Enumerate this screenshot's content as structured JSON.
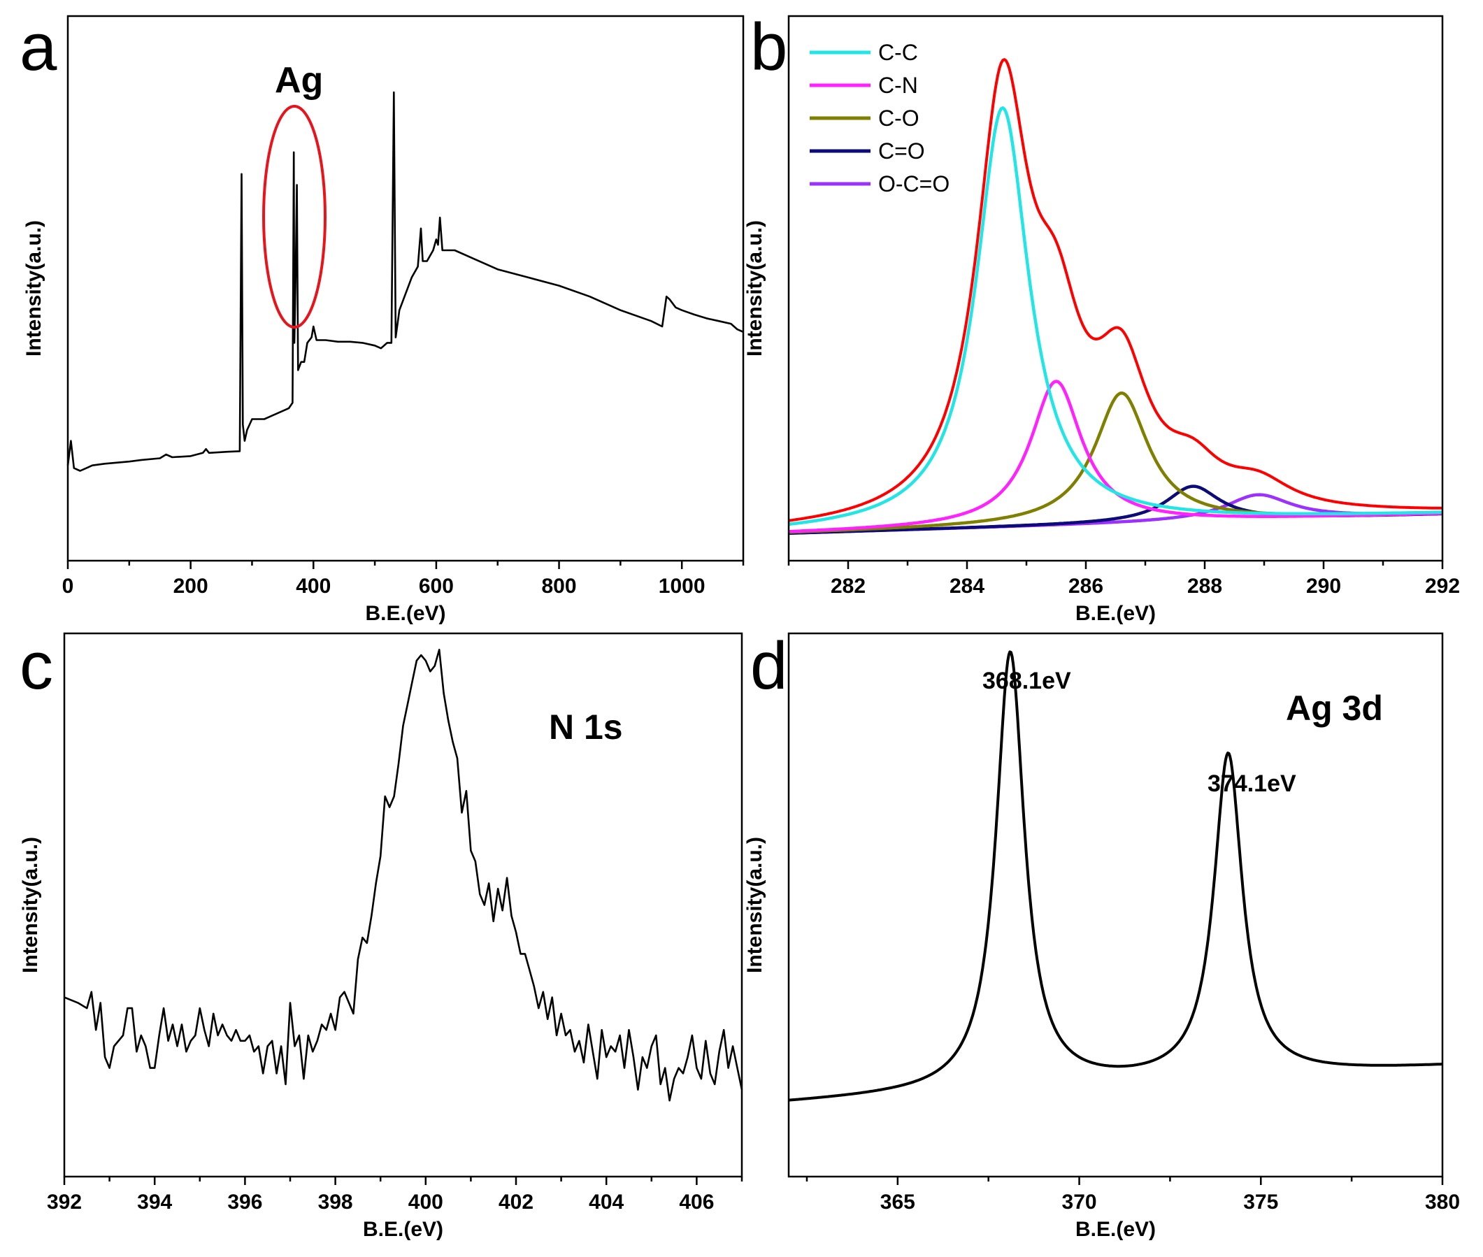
{
  "figure": {
    "panel_letters": [
      "a",
      "b",
      "c",
      "d"
    ]
  },
  "chart_data": [
    {
      "id": "a",
      "type": "line",
      "title": "",
      "xlabel": "B.E.(eV)",
      "ylabel": "Intensity(a.u.)",
      "xlim": [
        0,
        1100
      ],
      "ylim": [
        0,
        100
      ],
      "xticks": [
        0,
        200,
        400,
        600,
        800,
        1000
      ],
      "annotations": [
        {
          "text": "Ag"
        }
      ],
      "series": [
        {
          "name": "survey",
          "color": "#000000",
          "points": [
            [
              0,
              17.5
            ],
            [
              5,
              22
            ],
            [
              10,
              17
            ],
            [
              20,
              16.5
            ],
            [
              40,
              17.5
            ],
            [
              60,
              17.8
            ],
            [
              100,
              18.2
            ],
            [
              120,
              18.5
            ],
            [
              150,
              18.8
            ],
            [
              160,
              19.5
            ],
            [
              170,
              19
            ],
            [
              200,
              19.2
            ],
            [
              220,
              19.8
            ],
            [
              225,
              20.5
            ],
            [
              230,
              19.8
            ],
            [
              260,
              20
            ],
            [
              280,
              20.1
            ],
            [
              283,
              71
            ],
            [
              285,
              25
            ],
            [
              288,
              22
            ],
            [
              292,
              24
            ],
            [
              300,
              26
            ],
            [
              320,
              26
            ],
            [
              330,
              26.5
            ],
            [
              340,
              27
            ],
            [
              360,
              28
            ],
            [
              366,
              29
            ],
            [
              368,
              75
            ],
            [
              369,
              40
            ],
            [
              371,
              52
            ],
            [
              373,
              69
            ],
            [
              375,
              35
            ],
            [
              380,
              36.5
            ],
            [
              385,
              36.5
            ],
            [
              390,
              40
            ],
            [
              397,
              41
            ],
            [
              400,
              43
            ],
            [
              405,
              40.5
            ],
            [
              420,
              40.5
            ],
            [
              440,
              40.2
            ],
            [
              460,
              40.2
            ],
            [
              480,
              40
            ],
            [
              500,
              39.5
            ],
            [
              510,
              39
            ],
            [
              520,
              40
            ],
            [
              527,
              40
            ],
            [
              531,
              86
            ],
            [
              534,
              41
            ],
            [
              540,
              46
            ],
            [
              560,
              52
            ],
            [
              570,
              54
            ],
            [
              575,
              61
            ],
            [
              578,
              55
            ],
            [
              585,
              55
            ],
            [
              595,
              57
            ],
            [
              600,
              59
            ],
            [
              603,
              58
            ],
            [
              606,
              63
            ],
            [
              610,
              57
            ],
            [
              630,
              57
            ],
            [
              660,
              55.5
            ],
            [
              700,
              53.5
            ],
            [
              750,
              52
            ],
            [
              800,
              50.5
            ],
            [
              850,
              48.5
            ],
            [
              900,
              46
            ],
            [
              950,
              44
            ],
            [
              968,
              43
            ],
            [
              975,
              48.5
            ],
            [
              980,
              48
            ],
            [
              990,
              46.5
            ],
            [
              1000,
              46
            ],
            [
              1020,
              45.2
            ],
            [
              1040,
              44.5
            ],
            [
              1060,
              44
            ],
            [
              1080,
              43.5
            ],
            [
              1090,
              42.5
            ],
            [
              1100,
              42
            ]
          ]
        }
      ]
    },
    {
      "id": "b",
      "type": "line",
      "title": "",
      "xlabel": "B.E.(eV)",
      "ylabel": "Intensity(a.u.)",
      "xlim": [
        281,
        292
      ],
      "ylim": [
        0,
        100
      ],
      "xticks": [
        282,
        284,
        286,
        288,
        290,
        292
      ],
      "legend": {
        "position": "top-left",
        "entries": [
          "C-C",
          "C-N",
          "C-O",
          "C=O",
          "O-C=O"
        ]
      },
      "baseline": {
        "start": 5.0,
        "end": 8.5
      },
      "series": [
        {
          "name": "C-C",
          "color": "#22E5E5",
          "center": 284.6,
          "fwhm": 1.08,
          "height": 77
        },
        {
          "name": "C-N",
          "color": "#FF22FF",
          "center": 285.5,
          "fwhm": 1.05,
          "height": 26.5
        },
        {
          "name": "C-O",
          "color": "#7F7F00",
          "center": 286.6,
          "fwhm": 1.1,
          "height": 24
        },
        {
          "name": "C=O",
          "color": "#0B0B7A",
          "center": 287.8,
          "fwhm": 1.1,
          "height": 6.5
        },
        {
          "name": "O-C=O",
          "color": "#9B30FF",
          "center": 288.9,
          "fwhm": 1.35,
          "height": 4.6
        },
        {
          "name": "Envelope",
          "color": "#FF0000",
          "sum": true
        }
      ]
    },
    {
      "id": "c",
      "type": "line",
      "title": "",
      "xlabel": "B.E.(eV)",
      "ylabel": "Intensity(a.u.)",
      "xlim": [
        392,
        407
      ],
      "ylim": [
        0,
        100
      ],
      "xticks": [
        392,
        394,
        396,
        398,
        400,
        402,
        404,
        406
      ],
      "annotations": [
        {
          "text": "N 1s"
        }
      ],
      "series": [
        {
          "name": "N 1s",
          "color": "#000000",
          "points": [
            [
              392,
              33
            ],
            [
              392.3,
              32
            ],
            [
              392.5,
              31
            ],
            [
              392.6,
              34
            ],
            [
              392.7,
              27
            ],
            [
              392.8,
              32
            ],
            [
              392.9,
              22
            ],
            [
              393,
              20
            ],
            [
              393.1,
              24
            ],
            [
              393.3,
              26
            ],
            [
              393.4,
              31
            ],
            [
              393.5,
              31
            ],
            [
              393.6,
              23
            ],
            [
              393.7,
              26
            ],
            [
              393.8,
              24
            ],
            [
              393.9,
              20
            ],
            [
              394,
              20
            ],
            [
              394.1,
              26
            ],
            [
              394.2,
              31
            ],
            [
              394.3,
              25
            ],
            [
              394.4,
              28
            ],
            [
              394.5,
              24
            ],
            [
              394.6,
              28
            ],
            [
              394.7,
              23
            ],
            [
              394.8,
              25
            ],
            [
              394.9,
              26
            ],
            [
              395,
              31
            ],
            [
              395.1,
              27
            ],
            [
              395.2,
              24
            ],
            [
              395.3,
              30
            ],
            [
              395.4,
              26
            ],
            [
              395.5,
              28
            ],
            [
              395.6,
              26
            ],
            [
              395.7,
              25
            ],
            [
              395.8,
              27
            ],
            [
              395.9,
              25
            ],
            [
              396,
              25
            ],
            [
              396.1,
              26
            ],
            [
              396.2,
              23
            ],
            [
              396.3,
              24
            ],
            [
              396.4,
              19
            ],
            [
              396.5,
              24
            ],
            [
              396.6,
              25
            ],
            [
              396.7,
              19
            ],
            [
              396.8,
              24
            ],
            [
              396.9,
              17
            ],
            [
              397,
              32
            ],
            [
              397.1,
              24
            ],
            [
              397.2,
              26
            ],
            [
              397.3,
              18
            ],
            [
              397.4,
              26
            ],
            [
              397.5,
              23
            ],
            [
              397.6,
              25
            ],
            [
              397.7,
              28
            ],
            [
              397.8,
              27
            ],
            [
              397.9,
              30
            ],
            [
              398,
              27
            ],
            [
              398.1,
              33
            ],
            [
              398.2,
              34
            ],
            [
              398.3,
              32
            ],
            [
              398.4,
              30
            ],
            [
              398.5,
              40
            ],
            [
              398.6,
              44
            ],
            [
              398.7,
              43
            ],
            [
              398.8,
              48
            ],
            [
              398.9,
              54
            ],
            [
              399,
              59
            ],
            [
              399.1,
              70
            ],
            [
              399.2,
              68
            ],
            [
              399.3,
              70
            ],
            [
              399.4,
              76
            ],
            [
              399.5,
              83
            ],
            [
              399.6,
              87
            ],
            [
              399.7,
              91
            ],
            [
              399.8,
              95
            ],
            [
              399.9,
              96
            ],
            [
              400,
              95
            ],
            [
              400.1,
              93
            ],
            [
              400.2,
              94
            ],
            [
              400.3,
              97
            ],
            [
              400.4,
              89
            ],
            [
              400.5,
              84
            ],
            [
              400.6,
              80
            ],
            [
              400.7,
              77
            ],
            [
              400.8,
              67
            ],
            [
              400.9,
              71
            ],
            [
              401,
              60
            ],
            [
              401.1,
              58
            ],
            [
              401.2,
              52
            ],
            [
              401.3,
              50
            ],
            [
              401.4,
              54
            ],
            [
              401.5,
              47
            ],
            [
              401.6,
              53
            ],
            [
              401.7,
              49
            ],
            [
              401.8,
              55
            ],
            [
              401.9,
              48
            ],
            [
              402,
              45
            ],
            [
              402.1,
              41
            ],
            [
              402.2,
              41
            ],
            [
              402.3,
              38
            ],
            [
              402.4,
              35
            ],
            [
              402.5,
              31
            ],
            [
              402.6,
              34
            ],
            [
              402.7,
              29
            ],
            [
              402.8,
              33
            ],
            [
              402.9,
              26
            ],
            [
              403,
              30
            ],
            [
              403.1,
              26
            ],
            [
              403.2,
              27
            ],
            [
              403.3,
              23
            ],
            [
              403.4,
              25
            ],
            [
              403.5,
              21
            ],
            [
              403.6,
              28
            ],
            [
              403.7,
              23
            ],
            [
              403.8,
              18
            ],
            [
              403.9,
              27
            ],
            [
              404,
              22
            ],
            [
              404.1,
              24
            ],
            [
              404.2,
              23
            ],
            [
              404.3,
              26
            ],
            [
              404.4,
              20
            ],
            [
              404.5,
              27
            ],
            [
              404.6,
              22
            ],
            [
              404.7,
              16
            ],
            [
              404.8,
              22
            ],
            [
              404.9,
              20
            ],
            [
              405,
              24
            ],
            [
              405.1,
              26
            ],
            [
              405.2,
              17
            ],
            [
              405.3,
              20
            ],
            [
              405.4,
              14
            ],
            [
              405.5,
              18
            ],
            [
              405.6,
              20
            ],
            [
              405.7,
              19
            ],
            [
              405.8,
              22
            ],
            [
              405.9,
              26
            ],
            [
              406,
              20
            ],
            [
              406.1,
              18
            ],
            [
              406.2,
              25
            ],
            [
              406.3,
              19
            ],
            [
              406.4,
              17
            ],
            [
              406.5,
              23
            ],
            [
              406.6,
              27
            ],
            [
              406.7,
              20
            ],
            [
              406.8,
              24
            ],
            [
              406.9,
              20
            ],
            [
              407,
              16
            ]
          ]
        }
      ]
    },
    {
      "id": "d",
      "type": "line",
      "title": "",
      "xlabel": "B.E.(eV)",
      "ylabel": "Intensity(a.u.)",
      "xlim": [
        362,
        380
      ],
      "ylim": [
        0,
        100
      ],
      "xticks": [
        365,
        370,
        375,
        380
      ],
      "annotations": [
        {
          "text": "Ag 3d"
        },
        {
          "text": "368.1eV"
        },
        {
          "text": "374.1eV"
        }
      ],
      "baseline": {
        "start": 13.5,
        "end": 20.2
      },
      "series": [
        {
          "name": "Ag 3d",
          "color": "#000000",
          "peaks": [
            {
              "center": 368.1,
              "fwhm": 0.95,
              "height": 80.5
            },
            {
              "center": 374.1,
              "fwhm": 0.95,
              "height": 59.5
            }
          ]
        }
      ]
    }
  ]
}
